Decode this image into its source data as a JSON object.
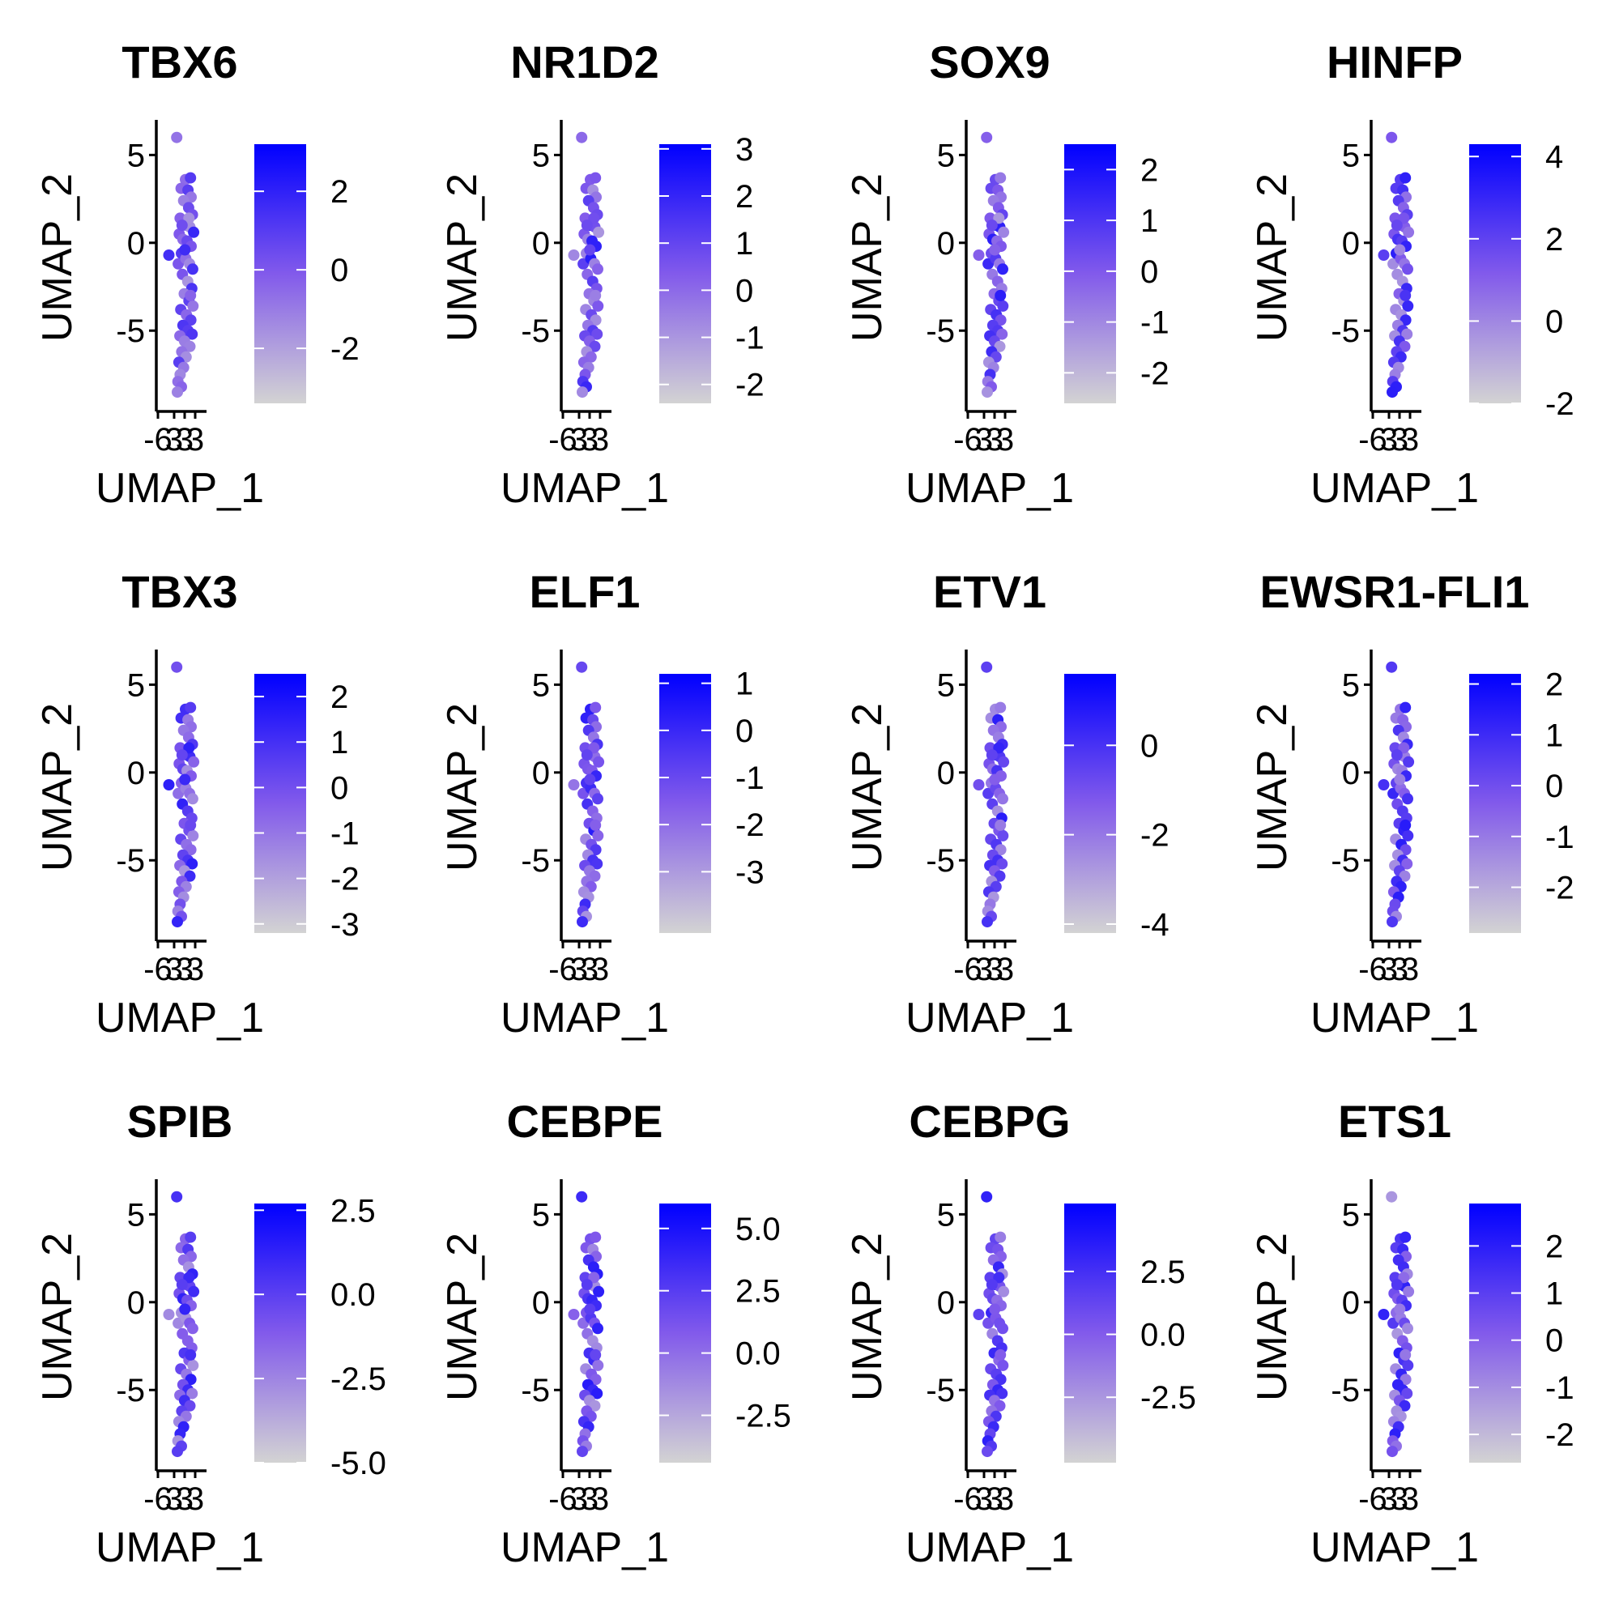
{
  "chart_data": {
    "type": "scatter",
    "grid": false,
    "legend_position": "right",
    "colors": {
      "low": "#d3d3d3",
      "high": "#0000ff"
    },
    "panels": [
      {
        "title": "TBX6",
        "legend_ticks": [
          "2",
          "0",
          "-2"
        ],
        "legend_values": [
          2,
          0,
          -2
        ],
        "legend_range": [
          -3.4,
          3.2
        ]
      },
      {
        "title": "NR1D2",
        "legend_ticks": [
          "3",
          "2",
          "1",
          "0",
          "-1",
          "-2"
        ],
        "legend_values": [
          3,
          2,
          1,
          0,
          -1,
          -2
        ],
        "legend_range": [
          -2.4,
          3.1
        ]
      },
      {
        "title": "SOX9",
        "legend_ticks": [
          "2",
          "1",
          "0",
          "-1",
          "-2"
        ],
        "legend_values": [
          2,
          1,
          0,
          -1,
          -2
        ],
        "legend_range": [
          -2.6,
          2.5
        ]
      },
      {
        "title": "HINFP",
        "legend_ticks": [
          "4",
          "2",
          "0",
          "-2"
        ],
        "legend_values": [
          4,
          2,
          0,
          -2
        ],
        "legend_range": [
          -2.0,
          4.3
        ]
      },
      {
        "title": "TBX3",
        "legend_ticks": [
          "2",
          "1",
          "0",
          "-1",
          "-2",
          "-3"
        ],
        "legend_values": [
          2,
          1,
          0,
          -1,
          -2,
          -3
        ],
        "legend_range": [
          -3.2,
          2.5
        ]
      },
      {
        "title": "ELF1",
        "legend_ticks": [
          "1",
          "0",
          "-1",
          "-2",
          "-3"
        ],
        "legend_values": [
          1,
          0,
          -1,
          -2,
          -3
        ],
        "legend_range": [
          -4.3,
          1.2
        ]
      },
      {
        "title": "ETV1",
        "legend_ticks": [
          "0",
          "-2",
          "-4"
        ],
        "legend_values": [
          0,
          -2,
          -4
        ],
        "legend_range": [
          -4.2,
          1.6
        ]
      },
      {
        "title": "EWSR1-FLI1",
        "legend_ticks": [
          "2",
          "1",
          "0",
          "-1",
          "-2"
        ],
        "legend_values": [
          2,
          1,
          0,
          -1,
          -2
        ],
        "legend_range": [
          -2.9,
          2.2
        ]
      },
      {
        "title": "SPIB",
        "legend_ticks": [
          "2.5",
          "0.0",
          "-2.5",
          "-5.0"
        ],
        "legend_values": [
          2.5,
          0,
          -2.5,
          -5
        ],
        "legend_range": [
          -5.0,
          2.7
        ]
      },
      {
        "title": "CEBPE",
        "legend_ticks": [
          "5.0",
          "2.5",
          "0.0",
          "-2.5"
        ],
        "legend_values": [
          5,
          2.5,
          0,
          -2.5
        ],
        "legend_range": [
          -4.4,
          6.0
        ]
      },
      {
        "title": "CEBPG",
        "legend_ticks": [
          "2.5",
          "0.0",
          "-2.5"
        ],
        "legend_values": [
          2.5,
          0,
          -2.5
        ],
        "legend_range": [
          -5.1,
          5.2
        ]
      },
      {
        "title": "ETS1",
        "legend_ticks": [
          "2",
          "1",
          "0",
          "-1",
          "-2"
        ],
        "legend_values": [
          2,
          1,
          0,
          -1,
          -2
        ],
        "legend_range": [
          -2.6,
          2.9
        ]
      }
    ],
    "xlabel": "UMAP_1",
    "ylabel": "UMAP_2",
    "x_ticks": [
      "-6",
      "3",
      "3",
      "3"
    ],
    "y_ticks": [
      "5",
      "0",
      "-5"
    ],
    "y_tick_values": [
      5,
      0,
      -5
    ],
    "ylim": [
      -9.6,
      7
    ],
    "xlim": [
      -8.5,
      7.5
    ],
    "points": [
      {
        "x": -2.0,
        "y": 6.0
      },
      {
        "x": -4.5,
        "y": -0.7
      },
      {
        "x": -1.5,
        "y": -1.2
      },
      {
        "x": 0.8,
        "y": 3.6
      },
      {
        "x": 2.4,
        "y": 3.7
      },
      {
        "x": -0.6,
        "y": 3.1
      },
      {
        "x": 1.6,
        "y": 3.0
      },
      {
        "x": 2.6,
        "y": 2.6
      },
      {
        "x": 0.2,
        "y": 2.4
      },
      {
        "x": 1.8,
        "y": 2.0
      },
      {
        "x": 3.0,
        "y": 1.6
      },
      {
        "x": -0.9,
        "y": 1.4
      },
      {
        "x": 0.7,
        "y": 1.0
      },
      {
        "x": 2.2,
        "y": 0.9
      },
      {
        "x": 3.4,
        "y": 0.6
      },
      {
        "x": -1.2,
        "y": 0.5
      },
      {
        "x": 0.0,
        "y": 0.2
      },
      {
        "x": 1.3,
        "y": 0.1
      },
      {
        "x": 2.6,
        "y": -0.2
      },
      {
        "x": -0.5,
        "y": -0.6
      },
      {
        "x": 0.9,
        "y": -0.9
      },
      {
        "x": 2.1,
        "y": -1.2
      },
      {
        "x": 3.1,
        "y": -1.5
      },
      {
        "x": -0.2,
        "y": -1.8
      },
      {
        "x": 1.5,
        "y": -2.2
      },
      {
        "x": 2.8,
        "y": -2.6
      },
      {
        "x": 0.4,
        "y": -2.9
      },
      {
        "x": 1.9,
        "y": -3.3
      },
      {
        "x": 3.2,
        "y": -3.6
      },
      {
        "x": -0.7,
        "y": -3.8
      },
      {
        "x": 1.1,
        "y": -4.1
      },
      {
        "x": 2.5,
        "y": -4.4
      },
      {
        "x": 0.0,
        "y": -4.7
      },
      {
        "x": 1.6,
        "y": -5.0
      },
      {
        "x": 2.9,
        "y": -5.2
      },
      {
        "x": -1.0,
        "y": -5.3
      },
      {
        "x": 0.5,
        "y": -5.6
      },
      {
        "x": 2.2,
        "y": -5.9
      },
      {
        "x": -0.4,
        "y": -6.2
      },
      {
        "x": 1.0,
        "y": -6.5
      },
      {
        "x": -1.3,
        "y": -6.8
      },
      {
        "x": 0.2,
        "y": -7.1
      },
      {
        "x": -0.9,
        "y": -7.5
      },
      {
        "x": -1.6,
        "y": -7.9
      },
      {
        "x": -0.5,
        "y": -8.2
      },
      {
        "x": -1.8,
        "y": -8.5
      },
      {
        "x": 0.6,
        "y": -0.4
      },
      {
        "x": 1.9,
        "y": 1.4
      },
      {
        "x": 2.4,
        "y": -3.0
      },
      {
        "x": -0.3,
        "y": 1.0
      }
    ]
  }
}
